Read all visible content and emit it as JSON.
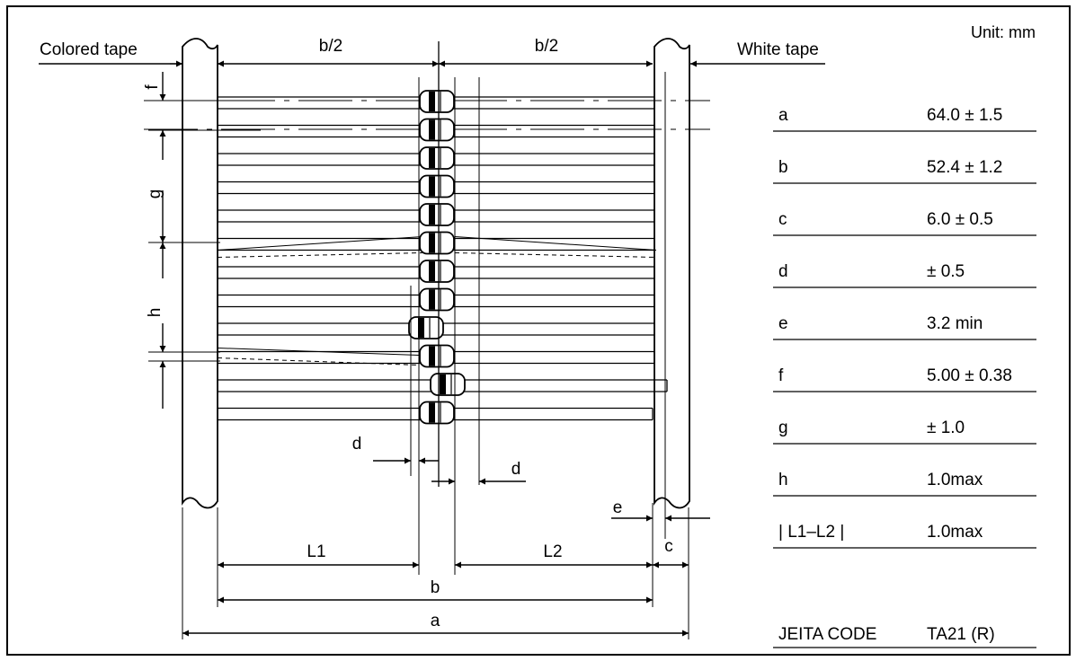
{
  "unit_label": "Unit: mm",
  "tape_labels": {
    "left": "Colored  tape",
    "right": "White tape"
  },
  "dimension_labels": {
    "b_half_left": "b/2",
    "b_half_right": "b/2",
    "f": "f",
    "g": "g",
    "h": "h",
    "d_left": "d",
    "d_right": "d",
    "e": "e",
    "c": "c",
    "L1": "L1",
    "L2": "L2",
    "b": "b",
    "a": "a"
  },
  "spec_table": [
    {
      "symbol": "a",
      "value": "64.0 ± 1.5"
    },
    {
      "symbol": "b",
      "value": "52.4 ± 1.2"
    },
    {
      "symbol": "c",
      "value": "6.0 ± 0.5"
    },
    {
      "symbol": "d",
      "value": "± 0.5"
    },
    {
      "symbol": "e",
      "value": "3.2 min"
    },
    {
      "symbol": "f",
      "value": "5.00 ± 0.38"
    },
    {
      "symbol": "g",
      "value": "± 1.0"
    },
    {
      "symbol": "h",
      "value": "1.0max"
    },
    {
      "symbol": "| L1–L2 |",
      "value": "1.0max"
    }
  ],
  "jeita": {
    "label": "JEITA CODE",
    "value": "TA21 (R)"
  },
  "component_count": 12,
  "colors": {
    "ink": "#000000",
    "paper": "#ffffff"
  }
}
